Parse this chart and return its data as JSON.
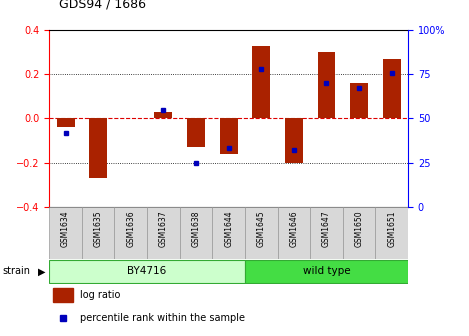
{
  "title": "GDS94 / 1686",
  "samples": [
    "GSM1634",
    "GSM1635",
    "GSM1636",
    "GSM1637",
    "GSM1638",
    "GSM1644",
    "GSM1645",
    "GSM1646",
    "GSM1647",
    "GSM1650",
    "GSM1651"
  ],
  "log_ratio": [
    -0.04,
    -0.27,
    0.0,
    0.03,
    -0.13,
    -0.16,
    0.33,
    -0.2,
    0.3,
    0.16,
    0.27
  ],
  "percentile_rank": [
    42,
    null,
    null,
    55,
    25,
    33,
    78,
    32,
    70,
    67,
    76
  ],
  "groups": [
    {
      "label": "BY4716",
      "start": 0,
      "end": 6,
      "color_light": "#CCFFCC",
      "color_dark": "#CCFFCC"
    },
    {
      "label": "wild type",
      "start": 6,
      "end": 11,
      "color_light": "#44DD44",
      "color_dark": "#44DD44"
    }
  ],
  "ylim_left": [
    -0.4,
    0.4
  ],
  "ylim_right": [
    0,
    100
  ],
  "yticks_left": [
    -0.4,
    -0.2,
    0.0,
    0.2,
    0.4
  ],
  "yticks_right": [
    0,
    25,
    50,
    75,
    100
  ],
  "bar_color": "#AA2200",
  "dot_color": "#0000BB",
  "zero_line_color": "#DD0000",
  "legend_log_ratio": "log ratio",
  "legend_percentile": "percentile rank within the sample",
  "strain_label": "strain"
}
